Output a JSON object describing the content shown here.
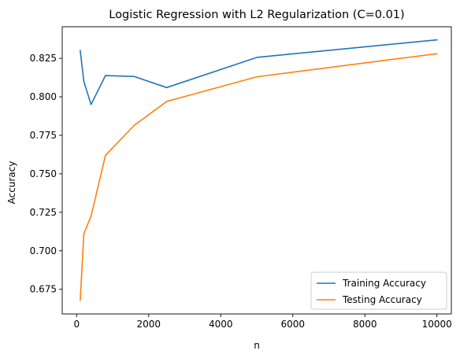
{
  "chart_data": {
    "type": "line",
    "title": "Logistic Regression with L2 Regularization (C=0.01)",
    "xlabel": "n",
    "ylabel": "Accuracy",
    "xlim": [
      -400,
      10400
    ],
    "ylim": [
      0.659,
      0.8455
    ],
    "x_ticks": [
      0,
      2000,
      4000,
      6000,
      8000,
      10000
    ],
    "y_ticks": [
      0.675,
      0.7,
      0.725,
      0.75,
      0.775,
      0.8,
      0.825
    ],
    "x_tick_labels": [
      "0",
      "2000",
      "4000",
      "6000",
      "8000",
      "10000"
    ],
    "y_tick_labels": [
      "0.675",
      "0.700",
      "0.725",
      "0.750",
      "0.775",
      "0.800",
      "0.825"
    ],
    "grid": false,
    "legend_position": "lower-right",
    "series": [
      {
        "name": "Training Accuracy",
        "color": "#1f77b4",
        "x": [
          100,
          200,
          400,
          800,
          1600,
          2500,
          5000,
          10000
        ],
        "y": [
          0.83,
          0.81,
          0.795,
          0.8138,
          0.8132,
          0.806,
          0.8256,
          0.837
        ]
      },
      {
        "name": "Testing Accuracy",
        "color": "#ff7f0e",
        "x": [
          100,
          200,
          400,
          800,
          1600,
          2500,
          5000,
          10000
        ],
        "y": [
          0.668,
          0.711,
          0.7225,
          0.762,
          0.7815,
          0.797,
          0.813,
          0.828
        ]
      }
    ]
  }
}
